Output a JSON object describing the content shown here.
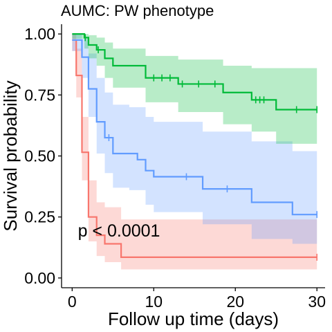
{
  "chart_data": {
    "type": "line",
    "title": "AUMC: PW phenotype",
    "xlabel": "Follow up time (days)",
    "ylabel": "Survival probability",
    "xlim": [
      -1.3,
      31
    ],
    "ylim": [
      -0.04,
      1.04
    ],
    "x_ticks": [
      0,
      10,
      20,
      30
    ],
    "x_tick_labels": [
      "0",
      "10",
      "20",
      "30"
    ],
    "y_ticks": [
      0,
      0.25,
      0.5,
      0.75,
      1.0
    ],
    "y_tick_labels": [
      "0.00",
      "0.25",
      "0.50",
      "0.75",
      "1.00"
    ],
    "grid": false,
    "legend": "none",
    "annotation": "p < 0.0001",
    "annotation_pos": [
      0.7,
      0.195
    ],
    "series": [
      {
        "color": "#F8766D",
        "band_color": "#F8766D",
        "steps": [
          [
            0,
            0.975
          ],
          [
            0.5,
            0.83
          ],
          [
            1.2,
            0.515
          ],
          [
            2,
            0.25
          ],
          [
            3,
            0.175
          ],
          [
            4,
            0.14
          ],
          [
            6,
            0.085
          ],
          [
            30,
            0.085
          ]
        ],
        "lower": [
          [
            0,
            0.93
          ],
          [
            0.5,
            0.74
          ],
          [
            1.2,
            0.4
          ],
          [
            2,
            0.15
          ],
          [
            3,
            0.09
          ],
          [
            4,
            0.065
          ],
          [
            6,
            0.035
          ],
          [
            30,
            0.035
          ]
        ],
        "upper": [
          [
            0,
            1.0
          ],
          [
            0.5,
            0.94
          ],
          [
            1.2,
            0.66
          ],
          [
            2,
            0.4
          ],
          [
            3,
            0.31
          ],
          [
            4,
            0.29
          ],
          [
            6,
            0.24
          ],
          [
            30,
            0.24
          ]
        ],
        "censor": [
          30
        ]
      },
      {
        "color": "#619CFF",
        "band_color": "#619CFF",
        "steps": [
          [
            0,
            0.975
          ],
          [
            1,
            0.975
          ],
          [
            1.2,
            0.905
          ],
          [
            2,
            0.775
          ],
          [
            3,
            0.64
          ],
          [
            4,
            0.575
          ],
          [
            4.5,
            0.575
          ],
          [
            5,
            0.51
          ],
          [
            7,
            0.51
          ],
          [
            8,
            0.485
          ],
          [
            9,
            0.44
          ],
          [
            10,
            0.415
          ],
          [
            16,
            0.365
          ],
          [
            22,
            0.31
          ],
          [
            27,
            0.26
          ],
          [
            30,
            0.26
          ]
        ],
        "lower": [
          [
            0,
            0.93
          ],
          [
            1,
            0.93
          ],
          [
            1.2,
            0.82
          ],
          [
            2,
            0.66
          ],
          [
            3,
            0.51
          ],
          [
            4,
            0.43
          ],
          [
            5,
            0.37
          ],
          [
            7,
            0.36
          ],
          [
            9,
            0.3
          ],
          [
            10,
            0.27
          ],
          [
            16,
            0.22
          ],
          [
            22,
            0.16
          ],
          [
            27,
            0.14
          ],
          [
            30,
            0.14
          ]
        ],
        "upper": [
          [
            0,
            1.0
          ],
          [
            1,
            1.0
          ],
          [
            1.2,
            0.98
          ],
          [
            2,
            0.92
          ],
          [
            3,
            0.82
          ],
          [
            4,
            0.76
          ],
          [
            5,
            0.71
          ],
          [
            7,
            0.7
          ],
          [
            9,
            0.66
          ],
          [
            10,
            0.64
          ],
          [
            16,
            0.6
          ],
          [
            22,
            0.56
          ],
          [
            27,
            0.52
          ],
          [
            30,
            0.52
          ]
        ],
        "censor": [
          4.5,
          14,
          19,
          30
        ]
      },
      {
        "color": "#00BA38",
        "band_color": "#00BA38",
        "steps": [
          [
            0,
            1.0
          ],
          [
            1,
            1.0
          ],
          [
            1.5,
            0.985
          ],
          [
            2,
            0.955
          ],
          [
            3,
            0.935
          ],
          [
            4,
            0.9
          ],
          [
            5,
            0.87
          ],
          [
            9,
            0.82
          ],
          [
            13,
            0.795
          ],
          [
            18.5,
            0.76
          ],
          [
            22,
            0.73
          ],
          [
            25,
            0.69
          ],
          [
            30,
            0.69
          ]
        ],
        "lower": [
          [
            0,
            0.98
          ],
          [
            1,
            0.98
          ],
          [
            1.5,
            0.94
          ],
          [
            2,
            0.9
          ],
          [
            3,
            0.87
          ],
          [
            4,
            0.82
          ],
          [
            5,
            0.78
          ],
          [
            9,
            0.72
          ],
          [
            13,
            0.68
          ],
          [
            18.5,
            0.63
          ],
          [
            22,
            0.6
          ],
          [
            25,
            0.55
          ],
          [
            30,
            0.55
          ]
        ],
        "upper": [
          [
            0,
            1.0
          ],
          [
            1.5,
            1.0
          ],
          [
            2,
            0.995
          ],
          [
            3,
            0.985
          ],
          [
            4,
            0.965
          ],
          [
            5,
            0.94
          ],
          [
            9,
            0.91
          ],
          [
            13,
            0.895
          ],
          [
            18.5,
            0.87
          ],
          [
            22,
            0.86
          ],
          [
            30,
            0.86
          ]
        ],
        "censor": [
          1.6,
          3.2,
          10,
          11,
          12,
          13.5,
          15.5,
          17.5,
          22.5,
          23,
          23.5,
          27.5,
          30
        ]
      }
    ]
  }
}
